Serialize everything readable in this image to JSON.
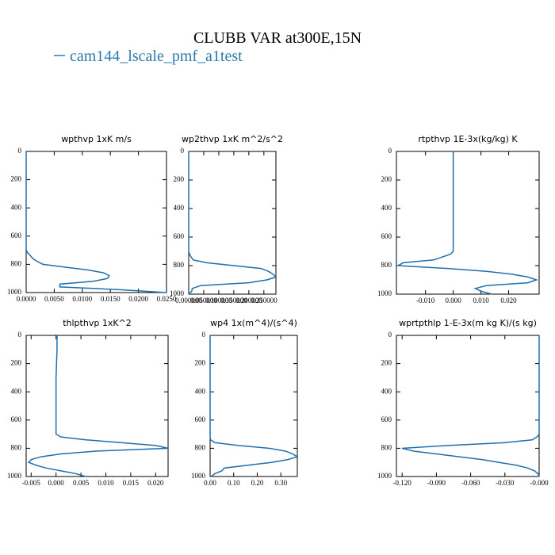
{
  "header": {
    "title": "CLUBB VAR at300E,15N",
    "legend": {
      "name": "cam144_lscale_pmf_a1test",
      "color": "#2a7ab0"
    }
  },
  "chart_data": [
    {
      "type": "line",
      "title": "wpthvp  1xK m/s",
      "y": [
        0,
        100,
        200,
        300,
        400,
        500,
        600,
        700,
        720,
        740,
        760,
        780,
        800,
        820,
        840,
        860,
        880,
        900,
        920,
        940,
        960,
        980,
        1000
      ],
      "series": [
        {
          "color": "#1f6fae",
          "values": [
            0,
            0,
            0,
            0,
            0,
            0,
            0,
            0,
            0.0003,
            0.0008,
            0.0012,
            0.002,
            0.003,
            0.007,
            0.011,
            0.0138,
            0.0148,
            0.0145,
            0.012,
            0.006,
            0.006,
            0.017,
            0.025
          ]
        }
      ],
      "xlim": [
        0,
        0.025
      ],
      "xticks": [
        {
          "value": 0,
          "label": "0.0000"
        },
        {
          "value": 0.005,
          "label": "0.0050"
        },
        {
          "value": 0.01,
          "label": "0.0100"
        },
        {
          "value": 0.015,
          "label": "0.0150"
        },
        {
          "value": 0.02,
          "label": "0.0200"
        },
        {
          "value": 0.025,
          "label": "0.0250"
        }
      ],
      "ylim": [
        1000,
        0
      ],
      "yticks": [
        0,
        200,
        400,
        600,
        800,
        1000
      ]
    },
    {
      "type": "line",
      "title": "wp2thvp  1xK m^2/s^2",
      "y": [
        0,
        100,
        200,
        300,
        400,
        500,
        600,
        700,
        720,
        740,
        760,
        780,
        800,
        820,
        840,
        860,
        880,
        900,
        920,
        940,
        960,
        980,
        1000
      ],
      "series": [
        {
          "color": "#1f6fae",
          "values": [
            0,
            0,
            0,
            0,
            0,
            0,
            0,
            0,
            0.003,
            0.008,
            0.015,
            0.06,
            0.15,
            0.24,
            0.265,
            0.28,
            0.29,
            0.26,
            0.2,
            0.04,
            0.012,
            0.01,
            0
          ]
        }
      ],
      "xlim": [
        0,
        0.29
      ],
      "xticks": [
        {
          "value": 0,
          "label": "0.000000"
        },
        {
          "value": 0.05,
          "label": "0.050000"
        },
        {
          "value": 0.1,
          "label": "0.100000"
        },
        {
          "value": 0.15,
          "label": "0.150000"
        },
        {
          "value": 0.2,
          "label": "0.200000"
        },
        {
          "value": 0.25,
          "label": "0.250000"
        }
      ],
      "ylim": [
        1000,
        0
      ],
      "yticks": [
        0,
        200,
        400,
        600,
        800,
        1000
      ]
    },
    {
      "type": "line",
      "title": "rtpthvp  1E-3x(kg/kg) K",
      "y": [
        0,
        100,
        200,
        300,
        400,
        500,
        600,
        700,
        720,
        740,
        760,
        780,
        800,
        820,
        840,
        860,
        880,
        900,
        920,
        940,
        960,
        980,
        1000
      ],
      "series": [
        {
          "color": "#1f6fae",
          "values": [
            0,
            0,
            0,
            0,
            0,
            0,
            0,
            0,
            -0.001,
            -0.004,
            -0.007,
            -0.018,
            -0.02,
            -0.002,
            0.012,
            0.021,
            0.027,
            0.03,
            0.027,
            0.012,
            0.008,
            0.01,
            0.014
          ]
        }
      ],
      "xlim": [
        -0.0205,
        0.031
      ],
      "xticks": [
        {
          "value": -0.01,
          "label": "-0.010"
        },
        {
          "value": 0,
          "label": "0.000"
        },
        {
          "value": 0.01,
          "label": "0.010"
        },
        {
          "value": 0.02,
          "label": "0.020"
        }
      ],
      "ylim": [
        1000,
        0
      ],
      "yticks": [
        0,
        200,
        400,
        600,
        800,
        1000
      ]
    },
    {
      "type": "line",
      "title": "thlpthvp  1xK^2",
      "y": [
        0,
        100,
        200,
        300,
        400,
        500,
        600,
        700,
        720,
        740,
        760,
        780,
        800,
        820,
        840,
        860,
        880,
        900,
        920,
        940,
        960,
        980,
        1000
      ],
      "series": [
        {
          "color": "#1f6fae",
          "values": [
            0.0002,
            0.0002,
            0.0001,
            0,
            0,
            0,
            0,
            0,
            0.001,
            0.006,
            0.013,
            0.02,
            0.0225,
            0.008,
            0.001,
            -0.003,
            -0.005,
            -0.0055,
            -0.004,
            -0.002,
            0.001,
            0.004,
            0.006
          ]
        }
      ],
      "xlim": [
        -0.006,
        0.0225
      ],
      "xticks": [
        {
          "value": -0.005,
          "label": "-0.005"
        },
        {
          "value": 0,
          "label": "0.000"
        },
        {
          "value": 0.005,
          "label": "0.005"
        },
        {
          "value": 0.01,
          "label": "0.010"
        },
        {
          "value": 0.015,
          "label": "0.015"
        },
        {
          "value": 0.02,
          "label": "0.020"
        }
      ],
      "ylim": [
        1000,
        0
      ],
      "yticks": [
        0,
        200,
        400,
        600,
        800,
        1000
      ]
    },
    {
      "type": "line",
      "title": "wp4  1x(m^4)/(s^4)",
      "y": [
        0,
        100,
        200,
        300,
        400,
        500,
        600,
        700,
        720,
        740,
        760,
        780,
        800,
        820,
        840,
        860,
        880,
        900,
        920,
        940,
        960,
        980,
        1000
      ],
      "series": [
        {
          "color": "#1f6fae",
          "values": [
            0,
            0,
            0,
            0,
            0,
            0,
            0,
            0,
            0,
            0.002,
            0.02,
            0.12,
            0.25,
            0.32,
            0.35,
            0.37,
            0.33,
            0.26,
            0.16,
            0.06,
            0.05,
            0.02,
            0.005
          ]
        }
      ],
      "xlim": [
        0,
        0.37
      ],
      "xticks": [
        {
          "value": 0,
          "label": "0.00"
        },
        {
          "value": 0.1,
          "label": "0.10"
        },
        {
          "value": 0.2,
          "label": "0.20"
        },
        {
          "value": 0.3,
          "label": "0.30"
        }
      ],
      "ylim": [
        1000,
        0
      ],
      "yticks": [
        0,
        200,
        400,
        600,
        800,
        1000
      ]
    },
    {
      "type": "line",
      "title": "wprtpthlp  1-E-3x(m kg K)/(s kg)",
      "y": [
        0,
        100,
        200,
        300,
        400,
        500,
        600,
        700,
        720,
        740,
        760,
        780,
        800,
        820,
        840,
        860,
        880,
        900,
        920,
        940,
        960,
        980,
        1000
      ],
      "series": [
        {
          "color": "#1f6fae",
          "values": [
            0,
            0,
            0,
            0,
            0,
            0,
            0,
            0,
            -0.002,
            -0.006,
            -0.03,
            -0.08,
            -0.12,
            -0.11,
            -0.09,
            -0.07,
            -0.05,
            -0.035,
            -0.02,
            -0.01,
            -0.004,
            -0.001,
            0
          ]
        }
      ],
      "xlim": [
        -0.125,
        0
      ],
      "xticks": [
        {
          "value": -0.12,
          "label": "-0.120"
        },
        {
          "value": -0.09,
          "label": "-0.090"
        },
        {
          "value": -0.06,
          "label": "-0.060"
        },
        {
          "value": -0.03,
          "label": "-0.030"
        },
        {
          "value": 0,
          "label": "-0.000"
        }
      ],
      "ylim": [
        1000,
        0
      ],
      "yticks": [
        0,
        200,
        400,
        600,
        800,
        1000
      ]
    }
  ]
}
